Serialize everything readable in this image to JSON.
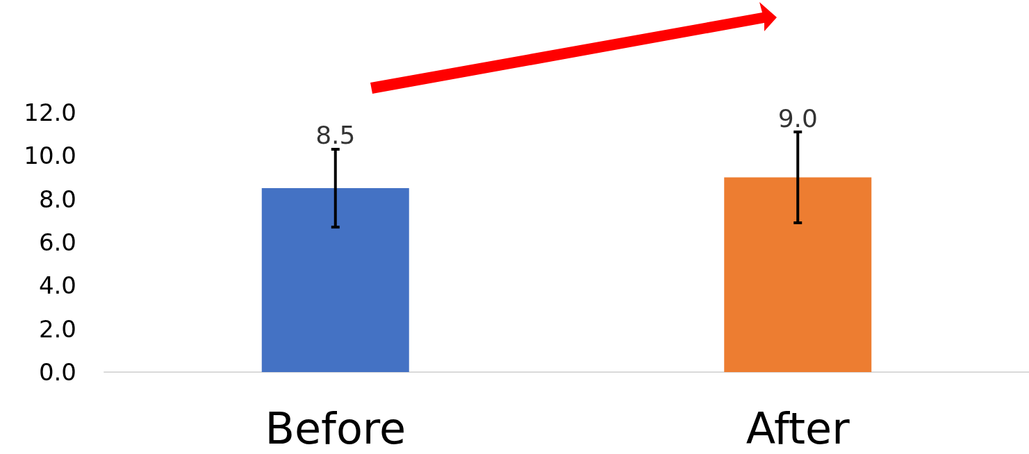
{
  "chart_data": {
    "type": "bar",
    "categories": [
      "Before",
      "After"
    ],
    "values": [
      8.5,
      9
    ],
    "colors": [
      "#4472c4",
      "#ed7d31"
    ],
    "errors": [
      1.8,
      2.1
    ],
    "value_labels": [
      "8.5",
      "9.0"
    ],
    "ylim": [
      0,
      12
    ],
    "yticks": [
      {
        "value": 0,
        "label": "0.0"
      },
      {
        "value": 2,
        "label": "2.0"
      },
      {
        "value": 4,
        "label": "4.0"
      },
      {
        "value": 6,
        "label": "6.0"
      },
      {
        "value": 8,
        "label": "8.0"
      },
      {
        "value": 10,
        "label": "10.0"
      },
      {
        "value": 12,
        "label": "12.0"
      }
    ],
    "grid": false
  }
}
